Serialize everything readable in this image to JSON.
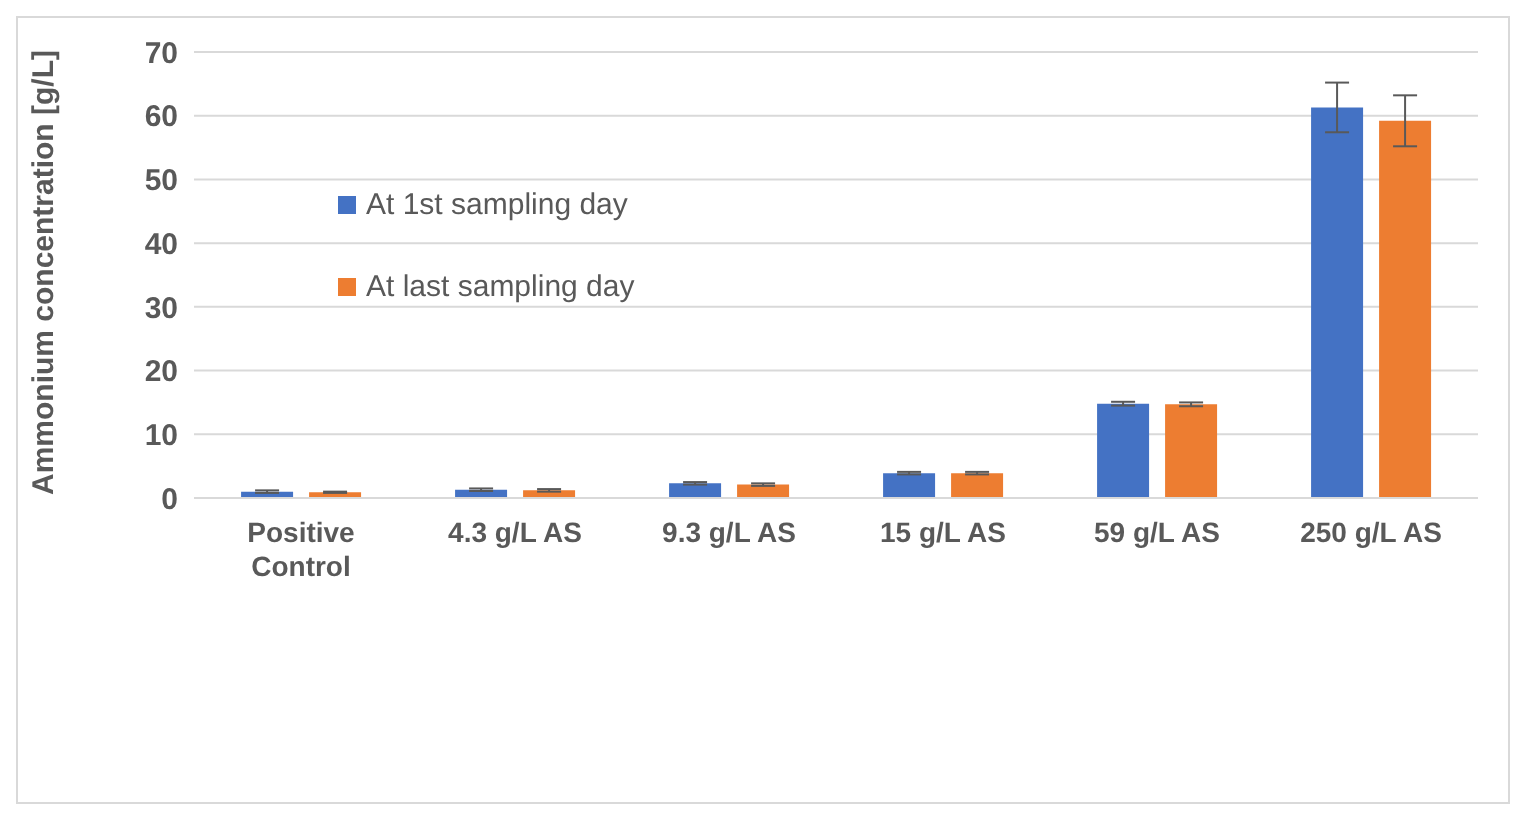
{
  "chart_data": {
    "type": "bar",
    "ylabel": "Ammonium concentration [g/L]",
    "categories": [
      "Positive Control",
      "4.3 g/L AS",
      "9.3 g/L AS",
      "15 g/L AS",
      "59 g/L AS",
      "250 g/L AS"
    ],
    "series": [
      {
        "name": "At 1st sampling day",
        "color": "#4472c4",
        "values": [
          1.0,
          1.3,
          2.3,
          3.9,
          14.8,
          61.3
        ],
        "errors": [
          0.2,
          0.2,
          0.2,
          0.2,
          0.3,
          3.9
        ]
      },
      {
        "name": "At last sampling day",
        "color": "#ed7d31",
        "values": [
          0.9,
          1.2,
          2.1,
          3.9,
          14.7,
          59.2
        ],
        "errors": [
          0.1,
          0.2,
          0.2,
          0.2,
          0.3,
          4.0
        ]
      }
    ],
    "ylim": [
      0,
      70
    ],
    "yticks": [
      0,
      10,
      20,
      30,
      40,
      50,
      60,
      70
    ],
    "grid": "y",
    "legend": "top left"
  }
}
